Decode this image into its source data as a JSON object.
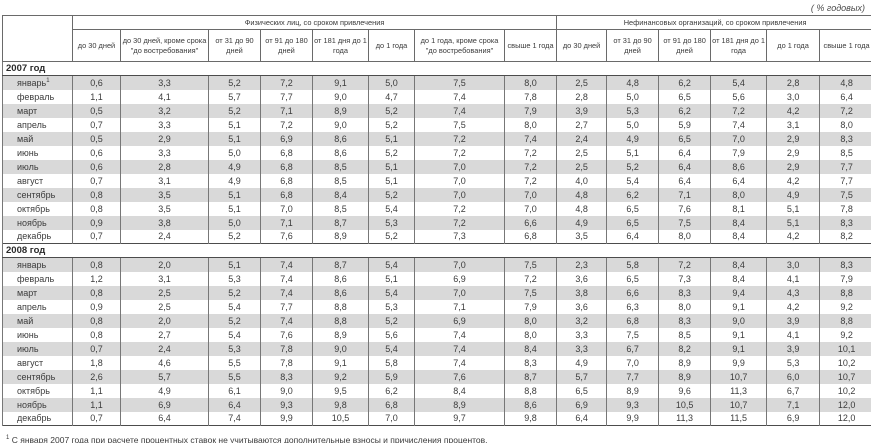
{
  "unit_note": "( % годовых)",
  "footnote_marker": "1",
  "footnote": "С января 2007 года при расчете процентных ставок не учитываются дополнительные взносы и причисления процентов.",
  "table": {
    "group1": "Физических лиц, со сроком привлечения",
    "group2": "Нефинансовых организаций, со сроком привлечения",
    "columns_g1": [
      "до 30 дней",
      "до 30 дней, кроме срока \"до востребования\"",
      "от 31 до 90 дней",
      "от 91 до 180 дней",
      "от 181 дня до 1 года",
      "до 1 года",
      "до 1 года, кроме срока \"до востребования\"",
      "свыше 1 года"
    ],
    "columns_g2": [
      "до 30 дней",
      "от 31 до 90 дней",
      "от 91 до 180 дней",
      "от 181 дня до 1 года",
      "до 1 года",
      "свыше 1 года"
    ],
    "sections": [
      {
        "year": "2007 год",
        "rows": [
          {
            "month": "январь",
            "sup": "1",
            "values": [
              "0,6",
              "3,3",
              "5,2",
              "7,2",
              "9,1",
              "5,0",
              "7,5",
              "8,0",
              "2,5",
              "4,8",
              "6,2",
              "5,4",
              "2,8",
              "4,8"
            ]
          },
          {
            "month": "февраль",
            "values": [
              "1,1",
              "4,1",
              "5,7",
              "7,7",
              "9,0",
              "4,7",
              "7,4",
              "7,8",
              "2,8",
              "5,0",
              "6,5",
              "5,6",
              "3,0",
              "6,4"
            ]
          },
          {
            "month": "март",
            "values": [
              "0,5",
              "3,2",
              "5,2",
              "7,1",
              "8,9",
              "5,2",
              "7,4",
              "7,9",
              "3,9",
              "5,3",
              "6,2",
              "7,2",
              "4,2",
              "7,2"
            ]
          },
          {
            "month": "апрель",
            "values": [
              "0,7",
              "3,3",
              "5,1",
              "7,2",
              "9,0",
              "5,2",
              "7,5",
              "8,0",
              "2,7",
              "5,0",
              "5,9",
              "7,4",
              "3,1",
              "8,0"
            ]
          },
          {
            "month": "май",
            "values": [
              "0,5",
              "2,9",
              "5,1",
              "6,9",
              "8,6",
              "5,1",
              "7,2",
              "7,4",
              "2,4",
              "4,9",
              "6,5",
              "7,0",
              "2,9",
              "8,3"
            ]
          },
          {
            "month": "июнь",
            "values": [
              "0,6",
              "3,3",
              "5,0",
              "6,8",
              "8,6",
              "5,2",
              "7,2",
              "7,2",
              "2,5",
              "5,1",
              "6,4",
              "7,9",
              "2,9",
              "8,5"
            ]
          },
          {
            "month": "июль",
            "values": [
              "0,6",
              "2,8",
              "4,9",
              "6,8",
              "8,5",
              "5,1",
              "7,0",
              "7,2",
              "2,5",
              "5,2",
              "6,4",
              "8,6",
              "2,9",
              "7,7"
            ]
          },
          {
            "month": "август",
            "values": [
              "0,7",
              "3,1",
              "4,9",
              "6,8",
              "8,5",
              "5,1",
              "7,0",
              "7,2",
              "4,0",
              "5,4",
              "6,4",
              "6,4",
              "4,2",
              "7,7"
            ]
          },
          {
            "month": "сентябрь",
            "values": [
              "0,8",
              "3,5",
              "5,1",
              "6,8",
              "8,4",
              "5,2",
              "7,0",
              "7,0",
              "4,8",
              "6,2",
              "7,1",
              "8,0",
              "4,9",
              "7,5"
            ]
          },
          {
            "month": "октябрь",
            "values": [
              "0,8",
              "3,5",
              "5,1",
              "7,0",
              "8,5",
              "5,4",
              "7,2",
              "7,0",
              "4,8",
              "6,5",
              "7,6",
              "8,1",
              "5,1",
              "7,8"
            ]
          },
          {
            "month": "ноябрь",
            "values": [
              "0,9",
              "3,8",
              "5,0",
              "7,1",
              "8,7",
              "5,3",
              "7,2",
              "6,6",
              "4,9",
              "6,5",
              "7,5",
              "8,4",
              "5,1",
              "8,3"
            ]
          },
          {
            "month": "декабрь",
            "values": [
              "0,7",
              "2,4",
              "5,2",
              "7,6",
              "8,9",
              "5,2",
              "7,3",
              "6,8",
              "3,5",
              "6,4",
              "8,0",
              "8,4",
              "4,2",
              "8,2"
            ]
          }
        ]
      },
      {
        "year": "2008 год",
        "rows": [
          {
            "month": "январь",
            "values": [
              "0,8",
              "2,0",
              "5,1",
              "7,4",
              "8,7",
              "5,4",
              "7,0",
              "7,5",
              "2,3",
              "5,8",
              "7,2",
              "8,4",
              "3,0",
              "8,3"
            ]
          },
          {
            "month": "февраль",
            "values": [
              "1,2",
              "3,1",
              "5,3",
              "7,4",
              "8,6",
              "5,1",
              "6,9",
              "7,2",
              "3,6",
              "6,5",
              "7,3",
              "8,4",
              "4,1",
              "7,9"
            ]
          },
          {
            "month": "март",
            "values": [
              "0,8",
              "2,5",
              "5,2",
              "7,4",
              "8,6",
              "5,4",
              "7,0",
              "7,5",
              "3,8",
              "6,6",
              "8,3",
              "9,4",
              "4,3",
              "8,8"
            ]
          },
          {
            "month": "апрель",
            "values": [
              "0,9",
              "2,5",
              "5,4",
              "7,7",
              "8,8",
              "5,3",
              "7,1",
              "7,9",
              "3,6",
              "6,3",
              "8,0",
              "9,1",
              "4,2",
              "9,2"
            ]
          },
          {
            "month": "май",
            "values": [
              "0,8",
              "2,0",
              "5,2",
              "7,4",
              "8,8",
              "5,2",
              "6,9",
              "8,0",
              "3,2",
              "6,8",
              "8,3",
              "9,0",
              "3,9",
              "8,8"
            ]
          },
          {
            "month": "июнь",
            "values": [
              "0,8",
              "2,7",
              "5,4",
              "7,6",
              "8,9",
              "5,6",
              "7,4",
              "8,0",
              "3,3",
              "7,5",
              "8,5",
              "9,1",
              "4,1",
              "9,2"
            ]
          },
          {
            "month": "июль",
            "values": [
              "0,7",
              "2,4",
              "5,3",
              "7,8",
              "9,0",
              "5,4",
              "7,4",
              "8,4",
              "3,3",
              "6,7",
              "8,2",
              "9,1",
              "3,9",
              "10,1"
            ]
          },
          {
            "month": "август",
            "values": [
              "1,8",
              "4,6",
              "5,5",
              "7,8",
              "9,1",
              "5,8",
              "7,4",
              "8,3",
              "4,9",
              "7,0",
              "8,9",
              "9,9",
              "5,3",
              "10,2"
            ]
          },
          {
            "month": "сентябрь",
            "values": [
              "2,6",
              "5,7",
              "5,5",
              "8,3",
              "9,2",
              "5,9",
              "7,6",
              "8,7",
              "5,7",
              "7,7",
              "8,9",
              "10,7",
              "6,0",
              "10,7"
            ]
          },
          {
            "month": "октябрь",
            "values": [
              "1,1",
              "4,9",
              "6,1",
              "9,0",
              "9,5",
              "6,2",
              "8,4",
              "8,8",
              "6,5",
              "8,9",
              "9,6",
              "11,3",
              "6,7",
              "10,2"
            ]
          },
          {
            "month": "ноябрь",
            "values": [
              "1,1",
              "6,9",
              "6,4",
              "9,3",
              "9,8",
              "6,8",
              "8,9",
              "8,6",
              "6,9",
              "9,3",
              "10,5",
              "10,7",
              "7,1",
              "12,0"
            ]
          },
          {
            "month": "декабрь",
            "values": [
              "0,7",
              "6,4",
              "7,4",
              "9,9",
              "10,5",
              "7,0",
              "9,7",
              "9,8",
              "6,4",
              "9,9",
              "11,3",
              "11,5",
              "6,9",
              "12,0"
            ]
          }
        ]
      }
    ]
  }
}
